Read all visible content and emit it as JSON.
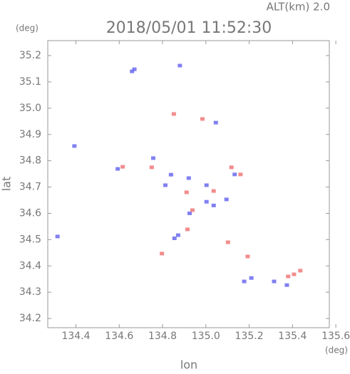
{
  "chart_data": {
    "type": "scatter",
    "title": "2018/05/01 11:52:30",
    "subtitle": "ALT(km) 2.0",
    "y_unit": "(deg)",
    "x_unit": "(deg)",
    "ylabel": "lat",
    "xlabel": "lon",
    "xlim": [
      134.27,
      135.57
    ],
    "ylim": [
      34.165,
      35.257
    ],
    "xticks": [
      134.4,
      134.6,
      134.8,
      {
        "value": 135,
        "label": "135.0"
      },
      135.2,
      135.4,
      135.6
    ],
    "yticks": [
      34.2,
      34.3,
      34.4,
      34.5,
      34.6,
      34.7,
      34.8,
      34.9,
      {
        "value": 35,
        "label": "35.0"
      },
      35.1,
      35.2
    ],
    "series": [
      {
        "color": "#6a6af0",
        "x": [
          134.659,
          134.67,
          134.88,
          135.046,
          134.393,
          134.593,
          134.757,
          134.839,
          134.813,
          134.921,
          135.003,
          135.003,
          134.925,
          135.036,
          134.872,
          134.855,
          135.133,
          135.095,
          134.315,
          135.21,
          135.177,
          135.315,
          135.374
        ],
        "values": [
          35.14,
          35.148,
          35.162,
          34.945,
          34.856,
          34.769,
          34.81,
          34.747,
          34.707,
          34.734,
          34.707,
          34.644,
          34.6,
          34.63,
          34.517,
          34.505,
          34.748,
          34.653,
          34.512,
          34.354,
          34.341,
          34.341,
          34.327
        ]
      },
      {
        "color": "#f07878",
        "x": [
          134.852,
          134.984,
          134.616,
          134.75,
          134.911,
          135.036,
          134.938,
          134.915,
          135.118,
          135.16,
          135.102,
          134.797,
          135.193,
          135.38,
          135.407,
          135.436
        ],
        "values": [
          34.978,
          34.959,
          34.777,
          34.775,
          34.68,
          34.685,
          34.612,
          34.539,
          34.775,
          34.748,
          34.49,
          34.447,
          34.436,
          34.36,
          34.368,
          34.382
        ]
      }
    ]
  }
}
